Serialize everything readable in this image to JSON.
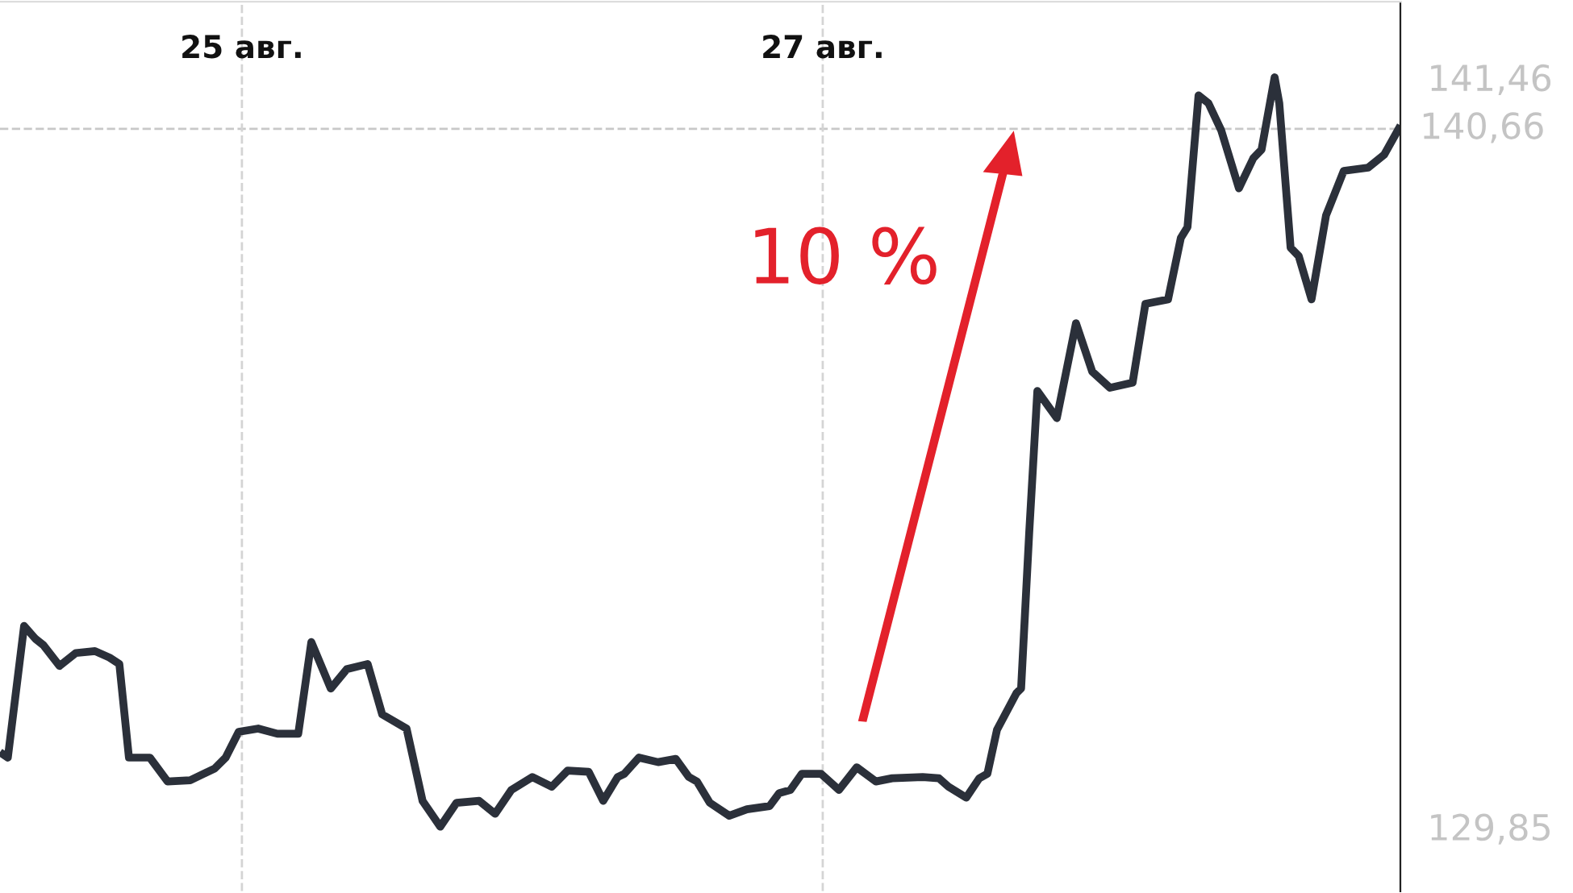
{
  "chart_data": {
    "type": "line",
    "x": [
      24.178,
      24.194,
      24.25,
      24.289,
      24.317,
      24.372,
      24.428,
      24.494,
      24.544,
      24.578,
      24.611,
      24.683,
      24.744,
      24.822,
      24.906,
      24.944,
      24.989,
      25.056,
      25.122,
      25.194,
      25.239,
      25.306,
      25.361,
      25.433,
      25.483,
      25.567,
      25.622,
      25.683,
      25.739,
      25.817,
      25.872,
      25.928,
      26.0,
      26.067,
      26.122,
      26.194,
      26.244,
      26.294,
      26.317,
      26.367,
      26.433,
      26.494,
      26.539,
      26.567,
      26.611,
      26.678,
      26.739,
      26.817,
      26.85,
      26.889,
      26.928,
      26.994,
      27.056,
      27.117,
      27.183,
      27.239,
      27.344,
      27.4,
      27.433,
      27.494,
      27.539,
      27.567,
      27.6,
      27.667,
      27.683,
      27.711,
      27.739,
      27.806,
      27.872,
      27.928,
      27.989,
      28.067,
      28.111,
      28.189,
      28.233,
      28.256,
      28.294,
      28.328,
      28.372,
      28.433,
      28.483,
      28.511,
      28.556,
      28.572,
      28.611,
      28.639,
      28.683,
      28.733,
      28.794,
      28.878,
      28.933,
      28.983
    ],
    "series": [
      {
        "color": "#2b303a",
        "values": [
          130.97,
          130.92,
          132.96,
          132.76,
          132.66,
          132.34,
          132.54,
          132.57,
          132.47,
          132.37,
          130.92,
          130.92,
          130.55,
          130.57,
          130.75,
          130.92,
          131.32,
          131.37,
          131.29,
          131.29,
          132.71,
          131.99,
          132.29,
          132.37,
          131.59,
          131.37,
          130.25,
          129.85,
          130.22,
          130.25,
          130.05,
          130.42,
          130.62,
          130.47,
          130.72,
          130.7,
          130.25,
          130.62,
          130.67,
          130.92,
          130.85,
          130.9,
          130.62,
          130.55,
          130.22,
          130.02,
          130.12,
          130.17,
          130.37,
          130.42,
          130.67,
          130.67,
          130.42,
          130.77,
          130.55,
          130.6,
          130.62,
          130.6,
          130.47,
          130.3,
          130.6,
          130.67,
          131.35,
          131.92,
          131.99,
          134.41,
          136.6,
          136.18,
          137.65,
          136.9,
          136.65,
          136.73,
          137.95,
          138.02,
          138.97,
          139.14,
          141.18,
          141.06,
          140.64,
          139.74,
          140.21,
          140.34,
          141.46,
          141.06,
          138.82,
          138.69,
          138.02,
          139.32,
          140.01,
          140.06,
          140.26,
          140.66
        ]
      }
    ],
    "xlim": [
      24.167,
      28.989
    ],
    "xticks": [
      {
        "value": 25,
        "label": "25 авг."
      },
      {
        "value": 27,
        "label": "27 авг."
      }
    ],
    "ylim": [
      128.85,
      142.63
    ],
    "yticks": [
      {
        "value": 129.85,
        "label": "129,85"
      },
      {
        "value": 141.46,
        "label": "141,46"
      }
    ],
    "ref_lines": [
      {
        "axis": "y",
        "value": 140.66,
        "label": "140,66",
        "color": "#c8c8c8",
        "line_style": "dashed"
      }
    ],
    "grid": "x",
    "line_style": "solid",
    "annotations": [
      "10 %"
    ]
  }
}
